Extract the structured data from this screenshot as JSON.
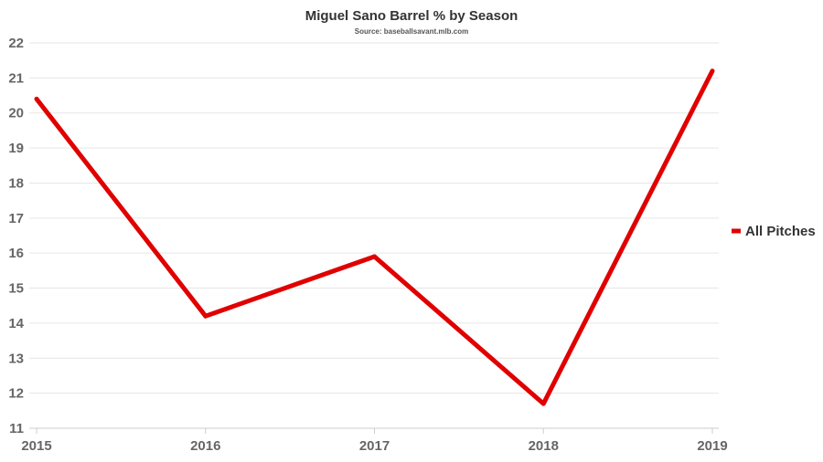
{
  "chart_data": {
    "type": "line",
    "title": "Miguel Sano Barrel % by Season",
    "subtitle": "Source: baseballsavant.mlb.com",
    "xlabel": "",
    "ylabel": "",
    "categories": [
      "2015",
      "2016",
      "2017",
      "2018",
      "2019"
    ],
    "series": [
      {
        "name": "All Pitches",
        "values": [
          20.4,
          14.2,
          15.9,
          11.7,
          21.2
        ],
        "color": "#e00000"
      }
    ],
    "ylim": [
      11,
      22
    ],
    "yticks": [
      "11",
      "12",
      "13",
      "14",
      "15",
      "16",
      "17",
      "18",
      "19",
      "20",
      "21",
      "22"
    ],
    "grid": true,
    "legend_position": "right"
  }
}
